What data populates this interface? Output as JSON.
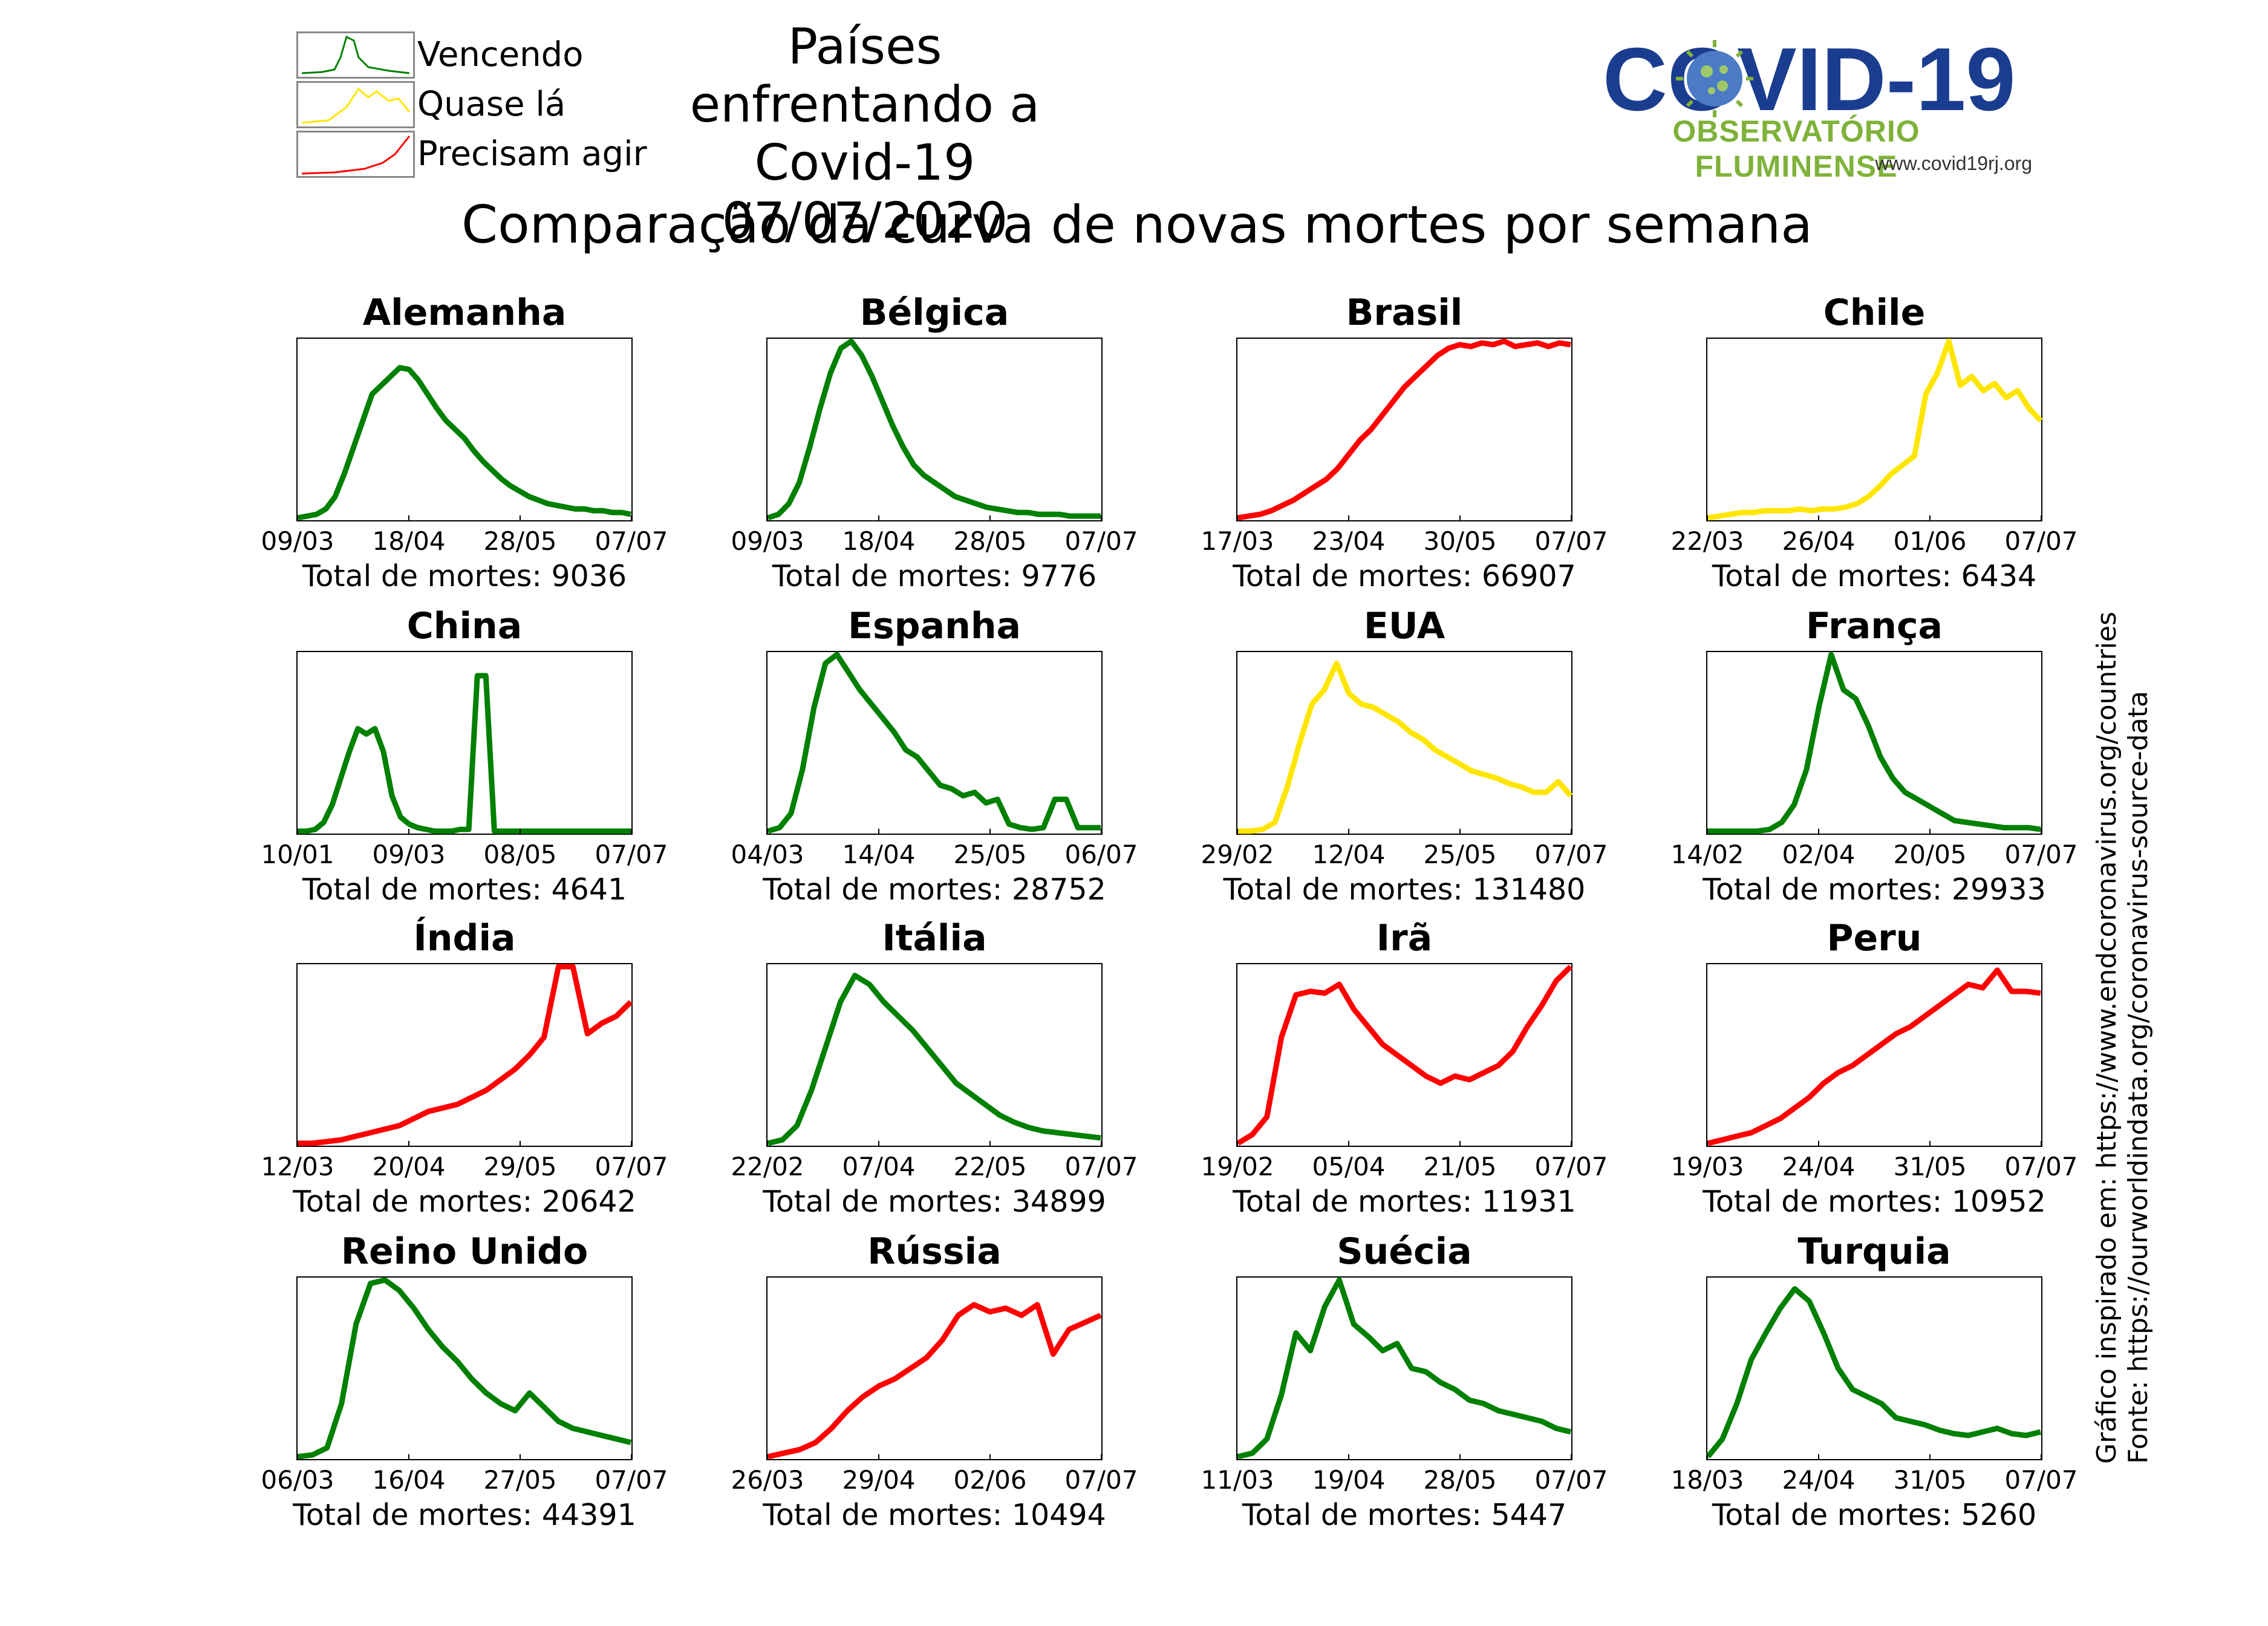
{
  "header": {
    "title_line1": "Países enfrentando a Covid-19",
    "title_line2": "07/07/2020",
    "subtitle": "Comparação da curva de novas mortes por semana"
  },
  "legend": [
    {
      "label": "Vencendo",
      "color": "#008000"
    },
    {
      "label": "Quase lá",
      "color": "#ffe600"
    },
    {
      "label": "Precisam agir",
      "color": "#ff0000"
    }
  ],
  "logo": {
    "text": "COVID-19",
    "subtitle": "OBSERVATÓRIO FLUMINENSE",
    "url": "www.covid19rj.org"
  },
  "source": {
    "line1": "Gráfico inspirado em: https://www.endcoronavirus.org/countries",
    "line2": "Fonte: https://ourworldindata.org/coronavirus-source-data"
  },
  "total_prefix": "Total de mortes: ",
  "chart_data": [
    {
      "type": "line",
      "title": "Alemanha",
      "status": "Vencendo",
      "color": "#008000",
      "total": "9036",
      "xticks": [
        "09/03",
        "18/04",
        "28/05",
        "07/07"
      ],
      "y": [
        0,
        0.01,
        0.02,
        0.05,
        0.12,
        0.25,
        0.4,
        0.55,
        0.7,
        0.75,
        0.8,
        0.85,
        0.84,
        0.78,
        0.7,
        0.62,
        0.55,
        0.5,
        0.45,
        0.38,
        0.32,
        0.27,
        0.22,
        0.18,
        0.15,
        0.12,
        0.1,
        0.08,
        0.07,
        0.06,
        0.05,
        0.05,
        0.04,
        0.04,
        0.03,
        0.03,
        0.02
      ]
    },
    {
      "type": "line",
      "title": "Bélgica",
      "status": "Vencendo",
      "color": "#008000",
      "total": "9776",
      "xticks": [
        "09/03",
        "18/04",
        "28/05",
        "07/07"
      ],
      "y": [
        0,
        0.02,
        0.08,
        0.2,
        0.4,
        0.62,
        0.82,
        0.96,
        1.0,
        0.92,
        0.8,
        0.66,
        0.52,
        0.4,
        0.3,
        0.24,
        0.2,
        0.16,
        0.12,
        0.1,
        0.08,
        0.06,
        0.05,
        0.04,
        0.03,
        0.03,
        0.02,
        0.02,
        0.02,
        0.01,
        0.01,
        0.01,
        0.01
      ]
    },
    {
      "type": "line",
      "title": "Brasil",
      "status": "Precisam agir",
      "color": "#ff0000",
      "total": "66907",
      "xticks": [
        "17/03",
        "23/04",
        "30/05",
        "07/07"
      ],
      "y": [
        0,
        0.01,
        0.02,
        0.04,
        0.07,
        0.1,
        0.14,
        0.18,
        0.22,
        0.28,
        0.36,
        0.44,
        0.5,
        0.58,
        0.66,
        0.74,
        0.8,
        0.86,
        0.92,
        0.96,
        0.98,
        0.97,
        0.99,
        0.98,
        1.0,
        0.97,
        0.98,
        0.99,
        0.97,
        0.99,
        0.98
      ]
    },
    {
      "type": "line",
      "title": "Chile",
      "status": "Quase lá",
      "color": "#ffe600",
      "total": "6434",
      "xticks": [
        "22/03",
        "26/04",
        "01/06",
        "07/07"
      ],
      "y": [
        0,
        0.01,
        0.02,
        0.03,
        0.03,
        0.04,
        0.04,
        0.04,
        0.05,
        0.04,
        0.05,
        0.05,
        0.06,
        0.08,
        0.12,
        0.18,
        0.25,
        0.3,
        0.35,
        0.7,
        0.82,
        1.0,
        0.75,
        0.8,
        0.72,
        0.76,
        0.68,
        0.72,
        0.62,
        0.55
      ]
    },
    {
      "type": "line",
      "title": "China",
      "status": "Vencendo",
      "color": "#008000",
      "total": "4641",
      "xticks": [
        "10/01",
        "09/03",
        "08/05",
        "07/07"
      ],
      "y": [
        0,
        0,
        0.01,
        0.05,
        0.15,
        0.3,
        0.45,
        0.58,
        0.55,
        0.58,
        0.45,
        0.2,
        0.08,
        0.04,
        0.02,
        0.01,
        0,
        0,
        0,
        0.01,
        0.01,
        0.88,
        0.88,
        0,
        0,
        0,
        0,
        0,
        0,
        0,
        0,
        0,
        0,
        0,
        0,
        0,
        0,
        0,
        0,
        0
      ]
    },
    {
      "type": "line",
      "title": "Espanha",
      "status": "Vencendo",
      "color": "#008000",
      "total": "28752",
      "xticks": [
        "04/03",
        "14/04",
        "25/05",
        "06/07"
      ],
      "y": [
        0,
        0.02,
        0.1,
        0.35,
        0.7,
        0.95,
        1.0,
        0.9,
        0.8,
        0.72,
        0.64,
        0.56,
        0.46,
        0.42,
        0.34,
        0.26,
        0.24,
        0.2,
        0.22,
        0.16,
        0.18,
        0.04,
        0.02,
        0.01,
        0.02,
        0.18,
        0.18,
        0.02,
        0.02,
        0.02
      ]
    },
    {
      "type": "line",
      "title": "EUA",
      "status": "Quase lá",
      "color": "#ffe600",
      "total": "131480",
      "xticks": [
        "29/02",
        "12/04",
        "25/05",
        "07/07"
      ],
      "y": [
        0,
        0,
        0.01,
        0.05,
        0.25,
        0.5,
        0.72,
        0.8,
        0.95,
        0.78,
        0.72,
        0.7,
        0.66,
        0.62,
        0.56,
        0.52,
        0.46,
        0.42,
        0.38,
        0.34,
        0.32,
        0.3,
        0.27,
        0.25,
        0.22,
        0.22,
        0.28,
        0.2
      ]
    },
    {
      "type": "line",
      "title": "França",
      "status": "Vencendo",
      "color": "#008000",
      "total": "29933",
      "xticks": [
        "14/02",
        "02/04",
        "20/05",
        "07/07"
      ],
      "y": [
        0,
        0,
        0,
        0,
        0,
        0.01,
        0.05,
        0.15,
        0.35,
        0.7,
        1.0,
        0.8,
        0.75,
        0.6,
        0.42,
        0.3,
        0.22,
        0.18,
        0.14,
        0.1,
        0.06,
        0.05,
        0.04,
        0.03,
        0.02,
        0.02,
        0.02,
        0.01
      ]
    },
    {
      "type": "line",
      "title": "Índia",
      "status": "Precisam agir",
      "color": "#ff0000",
      "total": "20642",
      "xticks": [
        "12/03",
        "20/04",
        "29/05",
        "07/07"
      ],
      "y": [
        0,
        0,
        0.01,
        0.02,
        0.04,
        0.06,
        0.08,
        0.1,
        0.14,
        0.18,
        0.2,
        0.22,
        0.26,
        0.3,
        0.36,
        0.42,
        0.5,
        0.6,
        1.0,
        1.0,
        0.62,
        0.68,
        0.72,
        0.8
      ]
    },
    {
      "type": "line",
      "title": "Itália",
      "status": "Vencendo",
      "color": "#008000",
      "total": "34899",
      "xticks": [
        "22/02",
        "07/04",
        "22/05",
        "07/07"
      ],
      "y": [
        0,
        0.02,
        0.1,
        0.3,
        0.55,
        0.8,
        0.95,
        0.9,
        0.8,
        0.72,
        0.64,
        0.54,
        0.44,
        0.34,
        0.28,
        0.22,
        0.16,
        0.12,
        0.09,
        0.07,
        0.06,
        0.05,
        0.04,
        0.03
      ]
    },
    {
      "type": "line",
      "title": "Irã",
      "status": "Precisam agir",
      "color": "#ff0000",
      "total": "11931",
      "xticks": [
        "19/02",
        "05/04",
        "21/05",
        "07/07"
      ],
      "y": [
        0,
        0.05,
        0.15,
        0.6,
        0.84,
        0.86,
        0.85,
        0.9,
        0.76,
        0.66,
        0.56,
        0.5,
        0.44,
        0.38,
        0.34,
        0.38,
        0.36,
        0.4,
        0.44,
        0.52,
        0.66,
        0.78,
        0.92,
        1.0
      ]
    },
    {
      "type": "line",
      "title": "Peru",
      "status": "Precisam agir",
      "color": "#ff0000",
      "total": "10952",
      "xticks": [
        "19/03",
        "24/04",
        "31/05",
        "07/07"
      ],
      "y": [
        0,
        0.02,
        0.04,
        0.06,
        0.1,
        0.14,
        0.2,
        0.26,
        0.34,
        0.4,
        0.44,
        0.5,
        0.56,
        0.62,
        0.66,
        0.72,
        0.78,
        0.84,
        0.9,
        0.88,
        0.98,
        0.86,
        0.86,
        0.85
      ]
    },
    {
      "type": "line",
      "title": "Reino Unido",
      "status": "Vencendo",
      "color": "#008000",
      "total": "44391",
      "xticks": [
        "06/03",
        "16/04",
        "27/05",
        "07/07"
      ],
      "y": [
        0,
        0.01,
        0.05,
        0.3,
        0.75,
        0.98,
        1.0,
        0.94,
        0.84,
        0.72,
        0.62,
        0.54,
        0.44,
        0.36,
        0.3,
        0.26,
        0.36,
        0.28,
        0.2,
        0.16,
        0.14,
        0.12,
        0.1,
        0.08
      ]
    },
    {
      "type": "line",
      "title": "Rússia",
      "status": "Precisam agir",
      "color": "#ff0000",
      "total": "10494",
      "xticks": [
        "26/03",
        "29/04",
        "02/06",
        "07/07"
      ],
      "y": [
        0,
        0.02,
        0.04,
        0.08,
        0.16,
        0.26,
        0.34,
        0.4,
        0.44,
        0.5,
        0.56,
        0.66,
        0.8,
        0.86,
        0.82,
        0.84,
        0.8,
        0.86,
        0.58,
        0.72,
        0.76,
        0.8
      ]
    },
    {
      "type": "line",
      "title": "Suécia",
      "status": "Vencendo",
      "color": "#008000",
      "total": "5447",
      "xticks": [
        "11/03",
        "19/04",
        "28/05",
        "07/07"
      ],
      "y": [
        0,
        0.02,
        0.1,
        0.35,
        0.7,
        0.6,
        0.85,
        1.0,
        0.75,
        0.68,
        0.6,
        0.64,
        0.5,
        0.48,
        0.42,
        0.38,
        0.32,
        0.3,
        0.26,
        0.24,
        0.22,
        0.2,
        0.16,
        0.14
      ]
    },
    {
      "type": "line",
      "title": "Turquia",
      "status": "Vencendo",
      "color": "#008000",
      "total": "5260",
      "xticks": [
        "18/03",
        "24/04",
        "31/05",
        "07/07"
      ],
      "y": [
        0,
        0.1,
        0.3,
        0.55,
        0.7,
        0.84,
        0.95,
        0.88,
        0.7,
        0.5,
        0.38,
        0.34,
        0.3,
        0.22,
        0.2,
        0.18,
        0.15,
        0.13,
        0.12,
        0.14,
        0.16,
        0.13,
        0.12,
        0.14
      ]
    }
  ]
}
